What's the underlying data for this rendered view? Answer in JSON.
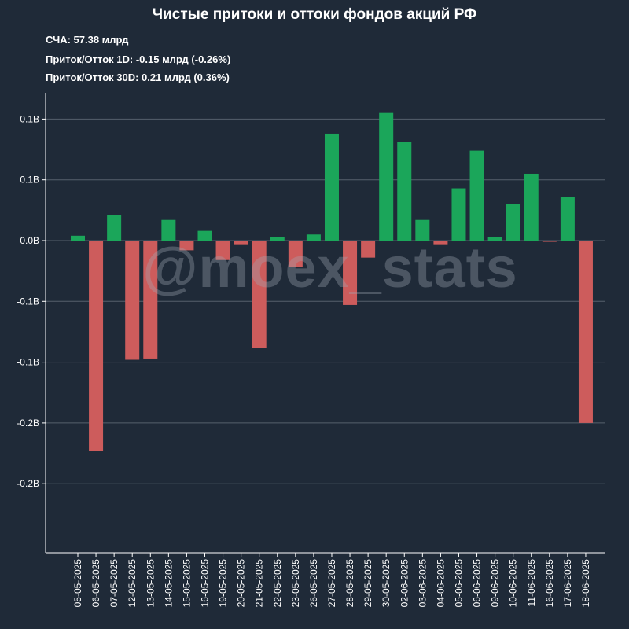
{
  "title": "Чистые притоки и оттоки фондов акций РФ",
  "info": {
    "line1": "СЧА: 57.38 млрд",
    "line2": "Приток/Отток 1D: -0.15 млрд (-0.26%)",
    "line3": "Приток/Отток 30D: 0.21 млрд (0.36%)"
  },
  "watermark": "@moex_stats",
  "colors": {
    "positive": "#1ba65a",
    "negative": "#cd5c5c",
    "background": "#1f2a38",
    "grid": "#56606c"
  },
  "chart_data": {
    "type": "bar",
    "categories": [
      "05-05-2025",
      "06-05-2025",
      "07-05-2025",
      "12-05-2025",
      "13-05-2025",
      "14-05-2025",
      "15-05-2025",
      "16-05-2025",
      "19-05-2025",
      "20-05-2025",
      "21-05-2025",
      "22-05-2025",
      "23-05-2025",
      "26-05-2025",
      "27-05-2025",
      "28-05-2025",
      "29-05-2025",
      "30-05-2025",
      "02-06-2025",
      "03-06-2025",
      "04-06-2025",
      "05-06-2025",
      "06-06-2025",
      "09-06-2025",
      "10-06-2025",
      "11-06-2025",
      "16-06-2025",
      "17-06-2025",
      "18-06-2025"
    ],
    "values": [
      0.004,
      -0.173,
      0.021,
      -0.098,
      -0.097,
      0.017,
      -0.008,
      0.008,
      -0.016,
      -0.003,
      -0.088,
      0.003,
      -0.022,
      0.005,
      0.088,
      -0.053,
      -0.014,
      0.105,
      0.081,
      0.017,
      -0.003,
      0.043,
      0.074,
      0.003,
      0.03,
      0.055,
      -0.001,
      0.036,
      -0.15
    ],
    "ylim": [
      -0.25,
      0.125
    ],
    "yticks": [
      0.1,
      0.05,
      0.0,
      -0.05,
      -0.1,
      -0.15,
      -0.2
    ],
    "ytick_labels": [
      "0.1B",
      "0.1B",
      "0.0B",
      "-0.1B",
      "-0.1B",
      "-0.2B",
      "-0.2B"
    ],
    "xlabel": "",
    "ylabel": "",
    "grid": true,
    "legend": "none"
  }
}
